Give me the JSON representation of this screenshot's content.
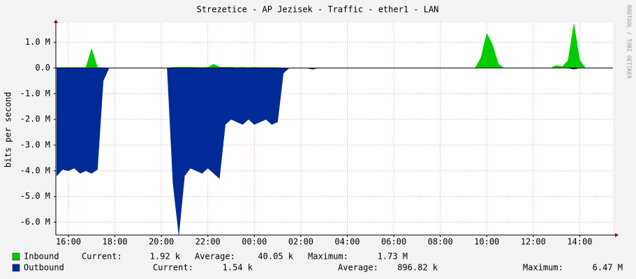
{
  "chart_data": {
    "type": "area",
    "title": "Strezetice - AP Jezisek - Traffic - ether1 - LAN",
    "y_label": "bits per second",
    "watermark": "RRDTOOL / TOBI OETIKER",
    "x": [
      15.5,
      15.75,
      16,
      16.25,
      16.5,
      16.75,
      17,
      17.25,
      17.5,
      17.75,
      18,
      18.25,
      18.5,
      18.75,
      19,
      19.25,
      19.5,
      19.75,
      20,
      20.25,
      20.5,
      20.75,
      21,
      21.25,
      21.5,
      21.75,
      22,
      22.25,
      22.5,
      22.75,
      23,
      23.25,
      23.5,
      23.75,
      24,
      24.25,
      24.5,
      24.75,
      25,
      25.25,
      25.5,
      25.75,
      26,
      26.25,
      26.5,
      26.75,
      27,
      27.25,
      27.5,
      27.75,
      28,
      28.25,
      28.5,
      28.75,
      29,
      29.25,
      29.5,
      29.75,
      30,
      30.25,
      30.5,
      30.75,
      31,
      31.25,
      31.5,
      31.75,
      32,
      32.25,
      32.5,
      32.75,
      33,
      33.25,
      33.5,
      33.75,
      34,
      34.25,
      34.5,
      34.75,
      35,
      35.25,
      35.5,
      35.75,
      36,
      36.25,
      36.5,
      36.75,
      37,
      37.25,
      37.5,
      37.75,
      38,
      38.25
    ],
    "xlim": [
      15.46,
      39.43
    ],
    "xticks": [
      {
        "value": 16,
        "label": "16:00"
      },
      {
        "value": 18,
        "label": "18:00"
      },
      {
        "value": 20,
        "label": "20:00"
      },
      {
        "value": 22,
        "label": "22:00"
      },
      {
        "value": 24,
        "label": "00:00"
      },
      {
        "value": 26,
        "label": "02:00"
      },
      {
        "value": 28,
        "label": "04:00"
      },
      {
        "value": 30,
        "label": "06:00"
      },
      {
        "value": 32,
        "label": "08:00"
      },
      {
        "value": 34,
        "label": "10:00"
      },
      {
        "value": 36,
        "label": "12:00"
      },
      {
        "value": 38,
        "label": "14:00"
      }
    ],
    "ylim": [
      -6500000,
      1750000
    ],
    "yticks": [
      {
        "value": 1000000,
        "label": "1.0 M"
      },
      {
        "value": 0,
        "label": "0.0"
      },
      {
        "value": -1000000,
        "label": "-1.0 M"
      },
      {
        "value": -2000000,
        "label": "-2.0 M"
      },
      {
        "value": -3000000,
        "label": "-3.0 M"
      },
      {
        "value": -4000000,
        "label": "-4.0 M"
      },
      {
        "value": -5000000,
        "label": "-5.0 M"
      },
      {
        "value": -6000000,
        "label": "-6.0 M"
      }
    ],
    "grid": true,
    "series": [
      {
        "name": "Inbound",
        "color": "#00cc00",
        "values": [
          20000,
          20000,
          20000,
          20000,
          20000,
          20000,
          750000,
          20000,
          20000,
          0,
          0,
          0,
          0,
          0,
          0,
          0,
          0,
          0,
          0,
          0,
          30000,
          30000,
          30000,
          30000,
          30000,
          20000,
          30000,
          150000,
          40000,
          30000,
          30000,
          20000,
          30000,
          20000,
          30000,
          20000,
          20000,
          20000,
          20000,
          0,
          0,
          0,
          0,
          0,
          0,
          0,
          0,
          0,
          0,
          0,
          0,
          0,
          0,
          0,
          0,
          0,
          0,
          0,
          0,
          0,
          0,
          0,
          0,
          0,
          0,
          0,
          0,
          0,
          0,
          0,
          0,
          0,
          0,
          400000,
          1350000,
          900000,
          150000,
          0,
          0,
          0,
          0,
          0,
          0,
          0,
          0,
          0,
          100000,
          50000,
          300000,
          1730000,
          300000,
          0
        ],
        "stats": [
          {
            "label": "Current:",
            "value": "1.92 k"
          },
          {
            "label": "Average:",
            "value": "40.05 k"
          },
          {
            "label": "Maximum:",
            "value": "1.73 M"
          }
        ]
      },
      {
        "name": "Outbound",
        "color": "#002a97",
        "values": [
          -4200000,
          -3950000,
          -4000000,
          -3900000,
          -4100000,
          -4000000,
          -4100000,
          -3950000,
          -500000,
          0,
          0,
          0,
          0,
          0,
          0,
          0,
          0,
          0,
          0,
          0,
          -4500000,
          -6500000,
          -4200000,
          -3900000,
          -4000000,
          -4100000,
          -3900000,
          -4100000,
          -4300000,
          -2200000,
          -2000000,
          -2100000,
          -2200000,
          -2000000,
          -2200000,
          -2100000,
          -2000000,
          -2200000,
          -2100000,
          -200000,
          0,
          0,
          0,
          0,
          -50000,
          0,
          0,
          0,
          0,
          0,
          0,
          0,
          0,
          0,
          0,
          0,
          0,
          0,
          0,
          0,
          0,
          0,
          0,
          0,
          0,
          0,
          0,
          0,
          0,
          0,
          0,
          0,
          0,
          0,
          0,
          0,
          0,
          0,
          0,
          0,
          0,
          0,
          0,
          0,
          0,
          0,
          0,
          0,
          0,
          -50000,
          0,
          0
        ],
        "stats": [
          {
            "label": "Current:",
            "value": "1.54 k"
          },
          {
            "label": "Average:",
            "value": "896.82 k"
          },
          {
            "label": "Maximum:",
            "value": "6.47 M"
          }
        ]
      }
    ]
  }
}
